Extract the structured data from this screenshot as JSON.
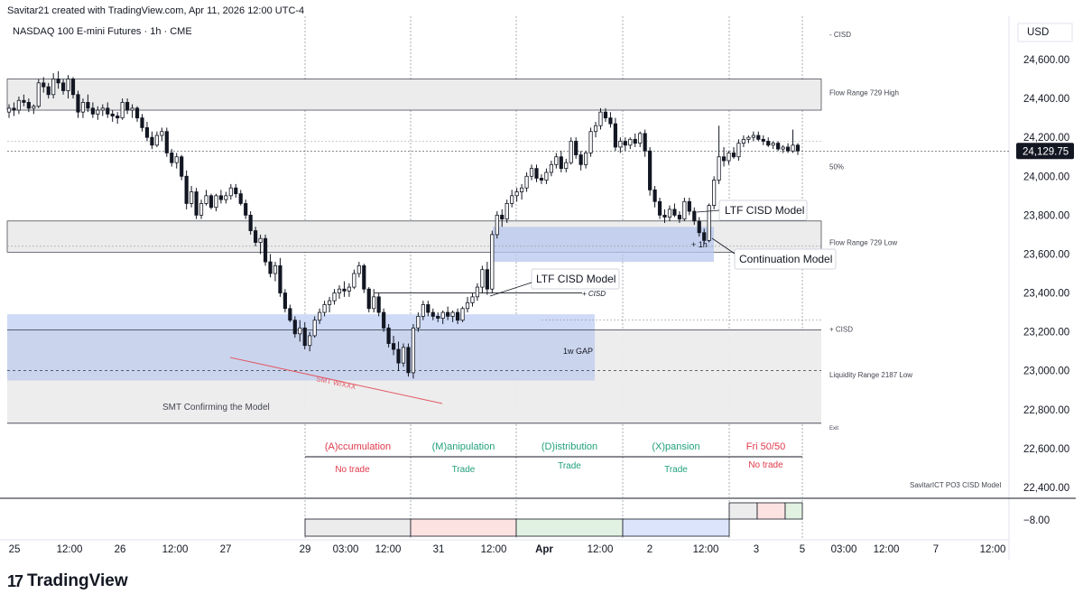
{
  "header": {
    "credit": "Savitar21 created with TradingView.com, Apr 11, 2026 12:00 UTC-4",
    "symbol": "NASDAQ 100 E-mini Futures · 1h · CME"
  },
  "brand": {
    "name": "TradingView",
    "icon": "tradingview-logo-icon"
  },
  "colors": {
    "up": "#ffffff",
    "down": "#131722",
    "flow_zone": "#ececec",
    "gap_zone": "#c3cfec",
    "cisd_zone": "#b7c7ee",
    "red": "#e0394b",
    "green": "#22a07b",
    "smt_line": "#e35a66"
  },
  "chart_data": {
    "type": "candlestick",
    "currency": "USD",
    "last_price": "24,129.75",
    "y_ticks": [
      "24,600.00",
      "24,400.00",
      "24,200.00",
      "24,000.00",
      "23,800.00",
      "23,600.00",
      "23,400.00",
      "23,200.00",
      "23,000.00",
      "22,800.00",
      "22,600.00",
      "22,400.00"
    ],
    "y_tick_values": [
      24600,
      24400,
      24200,
      24000,
      23800,
      23600,
      23400,
      23200,
      23000,
      22800,
      22600,
      22400
    ],
    "ylim": [
      22400,
      24700
    ],
    "x_ticks": [
      "25",
      "12:00",
      "26",
      "12:00",
      "27",
      "29",
      "03:00",
      "12:00",
      "31",
      "12:00",
      "Apr",
      "12:00",
      "2",
      "12:00",
      "3",
      "5",
      "03:00",
      "12:00",
      "7",
      "12:00"
    ],
    "candles": [
      [
        24330,
        24370,
        24300,
        24350
      ],
      [
        24350,
        24380,
        24310,
        24340
      ],
      [
        24340,
        24410,
        24320,
        24390
      ],
      [
        24390,
        24420,
        24360,
        24380
      ],
      [
        24380,
        24400,
        24330,
        24350
      ],
      [
        24350,
        24370,
        24320,
        24360
      ],
      [
        24360,
        24500,
        24350,
        24480
      ],
      [
        24480,
        24510,
        24430,
        24460
      ],
      [
        24460,
        24480,
        24400,
        24420
      ],
      [
        24420,
        24530,
        24400,
        24500
      ],
      [
        24500,
        24540,
        24450,
        24480
      ],
      [
        24480,
        24500,
        24420,
        24440
      ],
      [
        24440,
        24520,
        24400,
        24500
      ],
      [
        24500,
        24510,
        24400,
        24420
      ],
      [
        24420,
        24440,
        24300,
        24330
      ],
      [
        24330,
        24400,
        24300,
        24380
      ],
      [
        24380,
        24420,
        24330,
        24350
      ],
      [
        24350,
        24380,
        24300,
        24320
      ],
      [
        24320,
        24360,
        24290,
        24340
      ],
      [
        24340,
        24370,
        24310,
        24350
      ],
      [
        24350,
        24380,
        24300,
        24320
      ],
      [
        24320,
        24340,
        24280,
        24310
      ],
      [
        24310,
        24330,
        24270,
        24300
      ],
      [
        24300,
        24400,
        24290,
        24380
      ],
      [
        24380,
        24400,
        24320,
        24340
      ],
      [
        24340,
        24370,
        24300,
        24350
      ],
      [
        24350,
        24360,
        24280,
        24300
      ],
      [
        24300,
        24320,
        24230,
        24250
      ],
      [
        24250,
        24280,
        24180,
        24200
      ],
      [
        24200,
        24230,
        24140,
        24160
      ],
      [
        24160,
        24230,
        24150,
        24210
      ],
      [
        24210,
        24250,
        24180,
        24230
      ],
      [
        24230,
        24250,
        24100,
        24120
      ],
      [
        24120,
        24140,
        24050,
        24070
      ],
      [
        24070,
        24120,
        24040,
        24100
      ],
      [
        24100,
        24110,
        23980,
        24000
      ],
      [
        24000,
        24030,
        23830,
        23860
      ],
      [
        23860,
        23950,
        23840,
        23920
      ],
      [
        23920,
        23940,
        23780,
        23800
      ],
      [
        23800,
        23880,
        23780,
        23860
      ],
      [
        23860,
        23930,
        23850,
        23900
      ],
      [
        23900,
        23910,
        23830,
        23840
      ],
      [
        23840,
        23910,
        23820,
        23900
      ],
      [
        23900,
        23930,
        23860,
        23880
      ],
      [
        23880,
        23920,
        23860,
        23900
      ],
      [
        23900,
        23960,
        23880,
        23940
      ],
      [
        23940,
        23960,
        23890,
        23910
      ],
      [
        23910,
        23930,
        23850,
        23860
      ],
      [
        23860,
        23880,
        23780,
        23800
      ],
      [
        23800,
        23820,
        23700,
        23720
      ],
      [
        23720,
        23740,
        23640,
        23660
      ],
      [
        23660,
        23700,
        23600,
        23680
      ],
      [
        23680,
        23700,
        23540,
        23560
      ],
      [
        23560,
        23600,
        23480,
        23500
      ],
      [
        23500,
        23560,
        23460,
        23540
      ],
      [
        23540,
        23580,
        23380,
        23400
      ],
      [
        23400,
        23420,
        23300,
        23320
      ],
      [
        23320,
        23340,
        23250,
        23260
      ],
      [
        23260,
        23280,
        23170,
        23190
      ],
      [
        23190,
        23260,
        23150,
        23220
      ],
      [
        23220,
        23250,
        23110,
        23130
      ],
      [
        23130,
        23200,
        23100,
        23180
      ],
      [
        23180,
        23280,
        23170,
        23260
      ],
      [
        23260,
        23320,
        23240,
        23300
      ],
      [
        23300,
        23360,
        23280,
        23340
      ],
      [
        23340,
        23380,
        23300,
        23360
      ],
      [
        23360,
        23420,
        23340,
        23400
      ],
      [
        23400,
        23440,
        23370,
        23420
      ],
      [
        23420,
        23460,
        23380,
        23410
      ],
      [
        23410,
        23450,
        23380,
        23430
      ],
      [
        23430,
        23520,
        23420,
        23500
      ],
      [
        23500,
        23560,
        23480,
        23540
      ],
      [
        23540,
        23550,
        23400,
        23420
      ],
      [
        23420,
        23430,
        23300,
        23320
      ],
      [
        23320,
        23420,
        23300,
        23380
      ],
      [
        23380,
        23400,
        23280,
        23300
      ],
      [
        23300,
        23320,
        23200,
        23220
      ],
      [
        23220,
        23240,
        23120,
        23140
      ],
      [
        23140,
        23180,
        23080,
        23110
      ],
      [
        23110,
        23150,
        23000,
        23040
      ],
      [
        23040,
        23140,
        23020,
        23120
      ],
      [
        23120,
        23140,
        22970,
        22990
      ],
      [
        22990,
        23240,
        22960,
        23220
      ],
      [
        23220,
        23300,
        23200,
        23280
      ],
      [
        23280,
        23360,
        23260,
        23340
      ],
      [
        23340,
        23360,
        23280,
        23300
      ],
      [
        23300,
        23320,
        23260,
        23280
      ],
      [
        23280,
        23300,
        23250,
        23270
      ],
      [
        23270,
        23310,
        23240,
        23300
      ],
      [
        23300,
        23330,
        23260,
        23280
      ],
      [
        23280,
        23310,
        23250,
        23300
      ],
      [
        23300,
        23320,
        23240,
        23260
      ],
      [
        23260,
        23330,
        23250,
        23320
      ],
      [
        23320,
        23380,
        23300,
        23350
      ],
      [
        23350,
        23400,
        23330,
        23380
      ],
      [
        23380,
        23450,
        23360,
        23430
      ],
      [
        23430,
        23540,
        23400,
        23520
      ],
      [
        23520,
        23560,
        23390,
        23420
      ],
      [
        23420,
        23720,
        23400,
        23700
      ],
      [
        23700,
        23820,
        23680,
        23800
      ],
      [
        23800,
        23830,
        23740,
        23780
      ],
      [
        23780,
        23880,
        23760,
        23860
      ],
      [
        23860,
        23930,
        23840,
        23900
      ],
      [
        23900,
        23940,
        23870,
        23920
      ],
      [
        23920,
        23960,
        23880,
        23940
      ],
      [
        23940,
        24020,
        23920,
        24000
      ],
      [
        24000,
        24060,
        23980,
        24040
      ],
      [
        24040,
        24060,
        23970,
        23990
      ],
      [
        23990,
        24010,
        23960,
        23980
      ],
      [
        23980,
        24040,
        23960,
        24020
      ],
      [
        24020,
        24080,
        24000,
        24060
      ],
      [
        24060,
        24120,
        24040,
        24100
      ],
      [
        24100,
        24130,
        24020,
        24040
      ],
      [
        24040,
        24090,
        24020,
        24070
      ],
      [
        24070,
        24200,
        24060,
        24180
      ],
      [
        24180,
        24200,
        24090,
        24110
      ],
      [
        24110,
        24130,
        24030,
        24060
      ],
      [
        24060,
        24130,
        24040,
        24120
      ],
      [
        24120,
        24250,
        24100,
        24230
      ],
      [
        24230,
        24280,
        24200,
        24260
      ],
      [
        24260,
        24350,
        24240,
        24330
      ],
      [
        24330,
        24350,
        24280,
        24300
      ],
      [
        24300,
        24330,
        24250,
        24270
      ],
      [
        24270,
        24300,
        24130,
        24150
      ],
      [
        24150,
        24200,
        24120,
        24180
      ],
      [
        24180,
        24200,
        24130,
        24160
      ],
      [
        24160,
        24200,
        24140,
        24190
      ],
      [
        24190,
        24220,
        24150,
        24170
      ],
      [
        24170,
        24230,
        24150,
        24220
      ],
      [
        24220,
        24240,
        24100,
        24130
      ],
      [
        24130,
        24150,
        23900,
        23930
      ],
      [
        23930,
        23950,
        23840,
        23870
      ],
      [
        23870,
        23890,
        23780,
        23800
      ],
      [
        23800,
        23830,
        23760,
        23790
      ],
      [
        23790,
        23850,
        23770,
        23830
      ],
      [
        23830,
        23860,
        23790,
        23800
      ],
      [
        23800,
        23820,
        23760,
        23780
      ],
      [
        23780,
        23890,
        23770,
        23870
      ],
      [
        23870,
        23890,
        23800,
        23820
      ],
      [
        23820,
        23840,
        23750,
        23770
      ],
      [
        23770,
        23790,
        23690,
        23710
      ],
      [
        23710,
        23730,
        23650,
        23670
      ],
      [
        23670,
        23860,
        23660,
        23850
      ],
      [
        23850,
        24000,
        23830,
        23980
      ],
      [
        23980,
        24260,
        23960,
        24100
      ],
      [
        24100,
        24150,
        24050,
        24080
      ],
      [
        24080,
        24130,
        24060,
        24120
      ],
      [
        24120,
        24150,
        24090,
        24100
      ],
      [
        24100,
        24190,
        24080,
        24170
      ],
      [
        24170,
        24210,
        24150,
        24190
      ],
      [
        24190,
        24210,
        24170,
        24200
      ],
      [
        24200,
        24230,
        24180,
        24210
      ],
      [
        24210,
        24230,
        24180,
        24190
      ],
      [
        24190,
        24210,
        24160,
        24180
      ],
      [
        24180,
        24200,
        24150,
        24160
      ],
      [
        24160,
        24180,
        24140,
        24170
      ],
      [
        24170,
        24180,
        24130,
        24140
      ],
      [
        24140,
        24160,
        24120,
        24150
      ],
      [
        24150,
        24170,
        24120,
        24130
      ],
      [
        24130,
        24240,
        24120,
        24160
      ],
      [
        24160,
        24170,
        24110,
        24130
      ]
    ],
    "zones": [
      {
        "name": "Flow Range 729 High",
        "from": 24340,
        "to": 24500
      },
      {
        "name": "Flow Range 729 Low",
        "from": 23610,
        "to": 23770
      },
      {
        "name": "1w GAP",
        "from": 22950,
        "to": 23290
      },
      {
        "name": "Liquidity zone",
        "from": 22730,
        "to": 23210
      }
    ],
    "right_labels": [
      "- CISD",
      "Flow Range 729 High",
      "50%",
      "Flow Range 729 Low",
      "+ CISD",
      "Liquidity Range 2187 Low",
      "Exit"
    ],
    "annotations": [
      "LTF CISD Model",
      "LTF CISD Model",
      "Continuation Model",
      "+ CISD",
      "+ 1h",
      "1w GAP",
      "SMT W/XXX",
      "SMT Confirming the Model"
    ],
    "sessions": [
      {
        "name": "(A)ccumulation",
        "result": "No trade",
        "color": "red"
      },
      {
        "name": "(M)anipulation",
        "result": "Trade",
        "color": "green"
      },
      {
        "name": "(D)istribution",
        "result": "Trade",
        "color": "green"
      },
      {
        "name": "(X)pansion",
        "result": "Trade",
        "color": "green"
      },
      {
        "name": "Fri 50/50",
        "result": "No trade",
        "color": "red"
      }
    ],
    "indicator_name": "SavitarICT PO3 CISD Model",
    "indicator_value": "−8.00",
    "grid": true
  }
}
